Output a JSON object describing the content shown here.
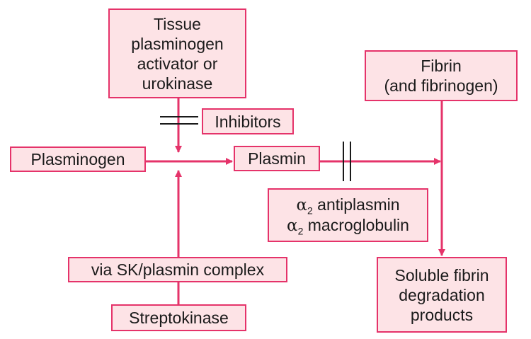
{
  "colors": {
    "accent": "#e5336a",
    "box_fill": "#fde3e6",
    "text": "#1a1a1a"
  },
  "nodes": {
    "activator": {
      "lines": [
        "Tissue",
        "plasminogen",
        "activator or",
        "urokinase"
      ]
    },
    "inhibitors": {
      "label": "Inhibitors"
    },
    "plasminogen": {
      "label": "Plasminogen"
    },
    "plasmin": {
      "label": "Plasmin"
    },
    "fibrin": {
      "lines": [
        "Fibrin",
        "(and fibrinogen)"
      ]
    },
    "antiplasmin": {
      "alpha": "α",
      "sub": "2",
      "l1": " antiplasmin",
      "l2": " macroglobulin"
    },
    "sk_complex": {
      "label": "via SK/plasmin complex"
    },
    "streptokinase": {
      "label": "Streptokinase"
    },
    "products": {
      "lines": [
        "Soluble fibrin",
        "degradation",
        "products"
      ]
    }
  }
}
